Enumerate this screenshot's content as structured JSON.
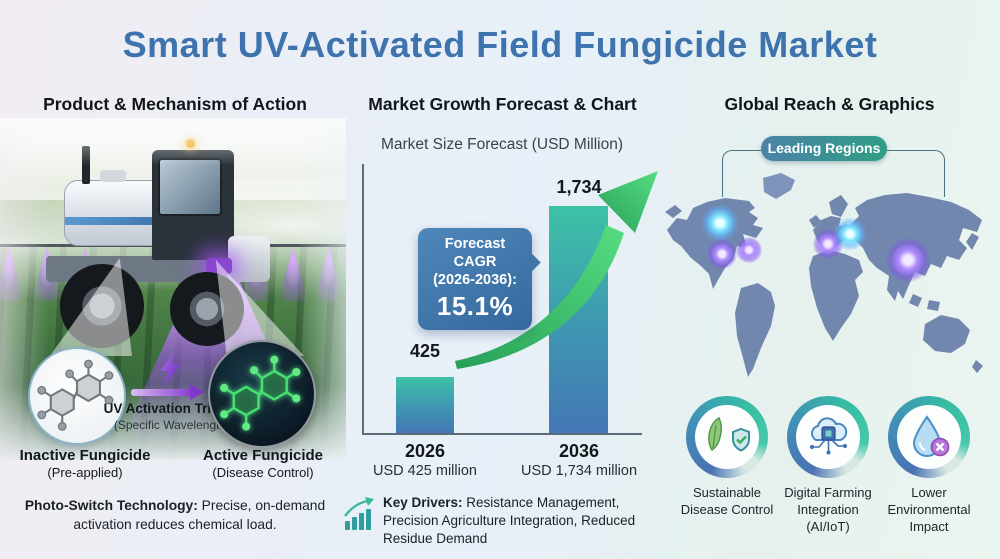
{
  "page": {
    "title": "Smart UV-Activated Field Fungicide Market"
  },
  "sections": {
    "product": {
      "header": "Product & Mechanism of Action",
      "inactive_label": "Inactive Fungicide",
      "inactive_sub": "(Pre-applied)",
      "trigger_label": "UV Activation Trigger",
      "trigger_sub": "(Specific Wavelength)",
      "active_label": "Active Fungicide",
      "active_sub": "(Disease Control)",
      "note_bold": "Photo-Switch Technology:",
      "note_rest": " Precise, on-demand activation reduces chemical load."
    },
    "market": {
      "header": "Market Growth Forecast & Chart",
      "chart_title": "Market Size Forecast (USD Million)",
      "cagr_line1": "Forecast CAGR",
      "cagr_line2": "(2026-2036):",
      "cagr_value": "15.1%",
      "bars": [
        {
          "year": "2026",
          "value_label": "425",
          "caption": "USD 425 million"
        },
        {
          "year": "2036",
          "value_label": "1,734",
          "caption": "USD 1,734 million"
        }
      ],
      "drivers_bold": "Key Drivers:",
      "drivers_rest": " Resistance Management, Precision Agriculture Integration, Reduced Residue Demand"
    },
    "global": {
      "header": "Global Reach & Graphics",
      "map_label": "Leading Regions",
      "badges": [
        {
          "label": "Sustainable Disease Control"
        },
        {
          "label": "Digital Farming Integration (AI/IoT)"
        },
        {
          "label": "Lower Environmental Impact"
        }
      ]
    }
  },
  "colors": {
    "title_blue": "#3e73ae",
    "bar_teal_top": "#3ec2a6",
    "bar_blue_bottom": "#4477b5",
    "callout_blue": "#3c6fa3",
    "arrow_green": "#3fcf74",
    "map_slate": "#7287ae",
    "pill_gradient": "#4a82a6 to #2f9f85",
    "uv_purple": "#8a3fd0"
  },
  "chart_data": {
    "type": "bar",
    "title": "Market Size Forecast (USD Million)",
    "categories": [
      "2026",
      "2036"
    ],
    "values": [
      425,
      1734
    ],
    "unit": "USD million",
    "xlabel": "",
    "ylabel": "USD Million",
    "ylim": [
      0,
      1800
    ],
    "grid": false,
    "legend": "none",
    "annotations": [
      "Forecast CAGR (2026-2036): 15.1%",
      "upward green growth arrow"
    ]
  }
}
